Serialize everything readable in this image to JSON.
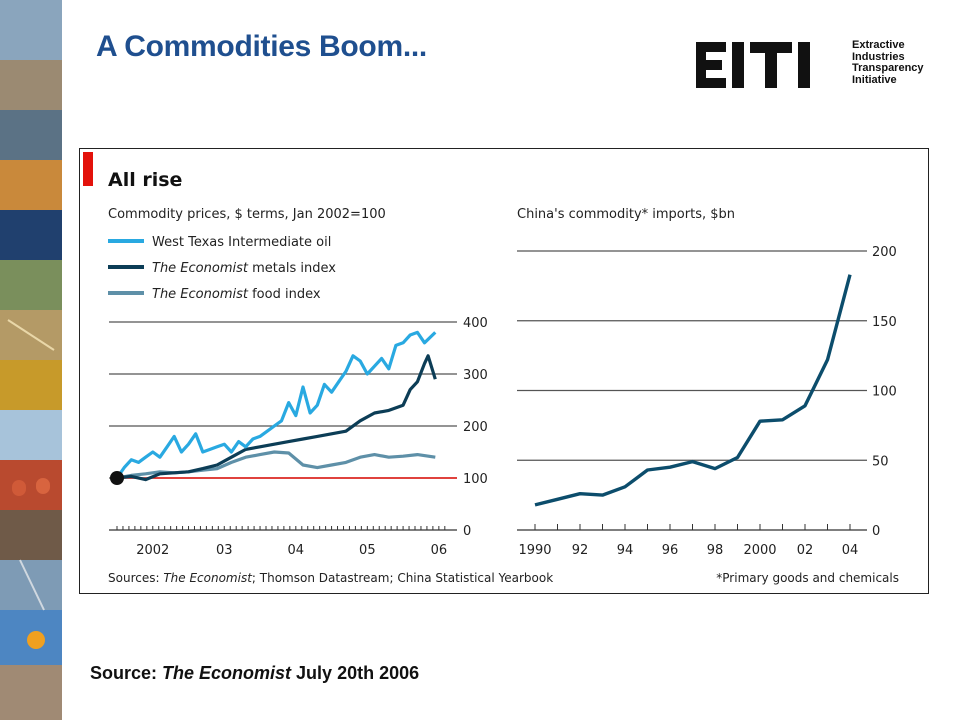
{
  "slide": {
    "title": "A Commodities Boom...",
    "source_prefix": "Source: ",
    "source_publication": "The Economist",
    "source_date": " July 20th 2006"
  },
  "logo": {
    "mark": "EITI",
    "caption": [
      "Extractive",
      "Industries",
      "Transparency",
      "Initiative"
    ]
  },
  "chart_header": {
    "title": "All rise",
    "accent_color": "#e3120b",
    "sources_prefix": "Sources: ",
    "sources_italic": "The Economist",
    "sources_rest": "; Thomson Datastream; China Statistical Yearbook",
    "footnote": "*Primary goods and chemicals"
  },
  "colors": {
    "title_blue": "#1f4f8f",
    "oil": "#29a9e1",
    "metals": "#0c3d56",
    "food": "#5e90a8",
    "imports": "#0c4d6c",
    "baseline": "#e3120b",
    "grid": "#555555"
  },
  "chart_data": [
    {
      "type": "line",
      "title": "Commodity prices, $ terms, Jan 2002=100",
      "xlabel": "",
      "ylabel": "",
      "x_tick_labels": [
        "2002",
        "03",
        "04",
        "05",
        "06"
      ],
      "x_range": [
        2002.0,
        2006.6
      ],
      "ylim": [
        0,
        400
      ],
      "y_ticks": [
        0,
        100,
        200,
        300,
        400
      ],
      "y_axis_side": "right",
      "grid": true,
      "legend": "top-left",
      "baseline": 100,
      "series": [
        {
          "name": "West Texas Intermediate oil",
          "name_italic": "",
          "name_rest": "West Texas Intermediate oil",
          "color": "#29a9e1",
          "x": [
            2002.0,
            2002.1,
            2002.2,
            2002.3,
            2002.4,
            2002.5,
            2002.6,
            2002.7,
            2002.8,
            2002.9,
            2003.0,
            2003.1,
            2003.2,
            2003.3,
            2003.4,
            2003.5,
            2003.6,
            2003.7,
            2003.8,
            2003.9,
            2004.0,
            2004.1,
            2004.2,
            2004.3,
            2004.4,
            2004.5,
            2004.6,
            2004.7,
            2004.8,
            2004.9,
            2005.0,
            2005.1,
            2005.2,
            2005.3,
            2005.4,
            2005.5,
            2005.6,
            2005.7,
            2005.8,
            2005.9,
            2006.0,
            2006.1,
            2006.2,
            2006.3,
            2006.45
          ],
          "y": [
            100,
            120,
            135,
            130,
            140,
            150,
            140,
            160,
            180,
            150,
            165,
            185,
            150,
            155,
            160,
            165,
            150,
            170,
            160,
            175,
            180,
            190,
            200,
            210,
            245,
            220,
            275,
            225,
            240,
            280,
            265,
            285,
            305,
            335,
            325,
            300,
            315,
            330,
            310,
            355,
            360,
            375,
            380,
            360,
            380
          ]
        },
        {
          "name": "The Economist metals index",
          "name_italic": "The Economist",
          "name_rest": " metals index",
          "color": "#0c3d56",
          "x": [
            2002.0,
            2002.2,
            2002.4,
            2002.6,
            2002.8,
            2003.0,
            2003.2,
            2003.4,
            2003.6,
            2003.8,
            2004.0,
            2004.2,
            2004.4,
            2004.6,
            2004.8,
            2005.0,
            2005.2,
            2005.4,
            2005.6,
            2005.8,
            2006.0,
            2006.1,
            2006.2,
            2006.3,
            2006.35,
            2006.45
          ],
          "y": [
            100,
            103,
            97,
            108,
            110,
            112,
            118,
            125,
            140,
            155,
            160,
            165,
            170,
            175,
            180,
            185,
            190,
            210,
            225,
            230,
            240,
            270,
            285,
            320,
            335,
            290
          ]
        },
        {
          "name": "The Economist food index",
          "name_italic": "The Economist",
          "name_rest": " food index",
          "color": "#5e90a8",
          "x": [
            2002.0,
            2002.2,
            2002.4,
            2002.6,
            2002.8,
            2003.0,
            2003.2,
            2003.4,
            2003.6,
            2003.8,
            2004.0,
            2004.2,
            2004.4,
            2004.6,
            2004.8,
            2005.0,
            2005.2,
            2005.4,
            2005.6,
            2005.8,
            2006.0,
            2006.2,
            2006.45
          ],
          "y": [
            100,
            105,
            108,
            112,
            110,
            112,
            115,
            118,
            130,
            140,
            145,
            150,
            148,
            125,
            120,
            125,
            130,
            140,
            145,
            140,
            142,
            145,
            140
          ]
        }
      ]
    },
    {
      "type": "line",
      "title": "China's commodity* imports, $bn",
      "xlabel": "",
      "ylabel": "",
      "x_tick_labels": [
        "1990",
        "92",
        "94",
        "96",
        "98",
        "2000",
        "02",
        "04"
      ],
      "x_range": [
        1990,
        2004
      ],
      "ylim": [
        0,
        200
      ],
      "y_ticks": [
        0,
        50,
        100,
        150,
        200
      ],
      "y_axis_side": "right",
      "grid": true,
      "series": [
        {
          "x": [
            1990,
            1991,
            1992,
            1993,
            1994,
            1995,
            1996,
            1997,
            1998,
            1999,
            2000,
            2001,
            2002,
            2003,
            2004
          ],
          "y": [
            18,
            22,
            26,
            25,
            31,
            43,
            45,
            49,
            44,
            52,
            78,
            79,
            89,
            122,
            183
          ]
        }
      ]
    }
  ]
}
